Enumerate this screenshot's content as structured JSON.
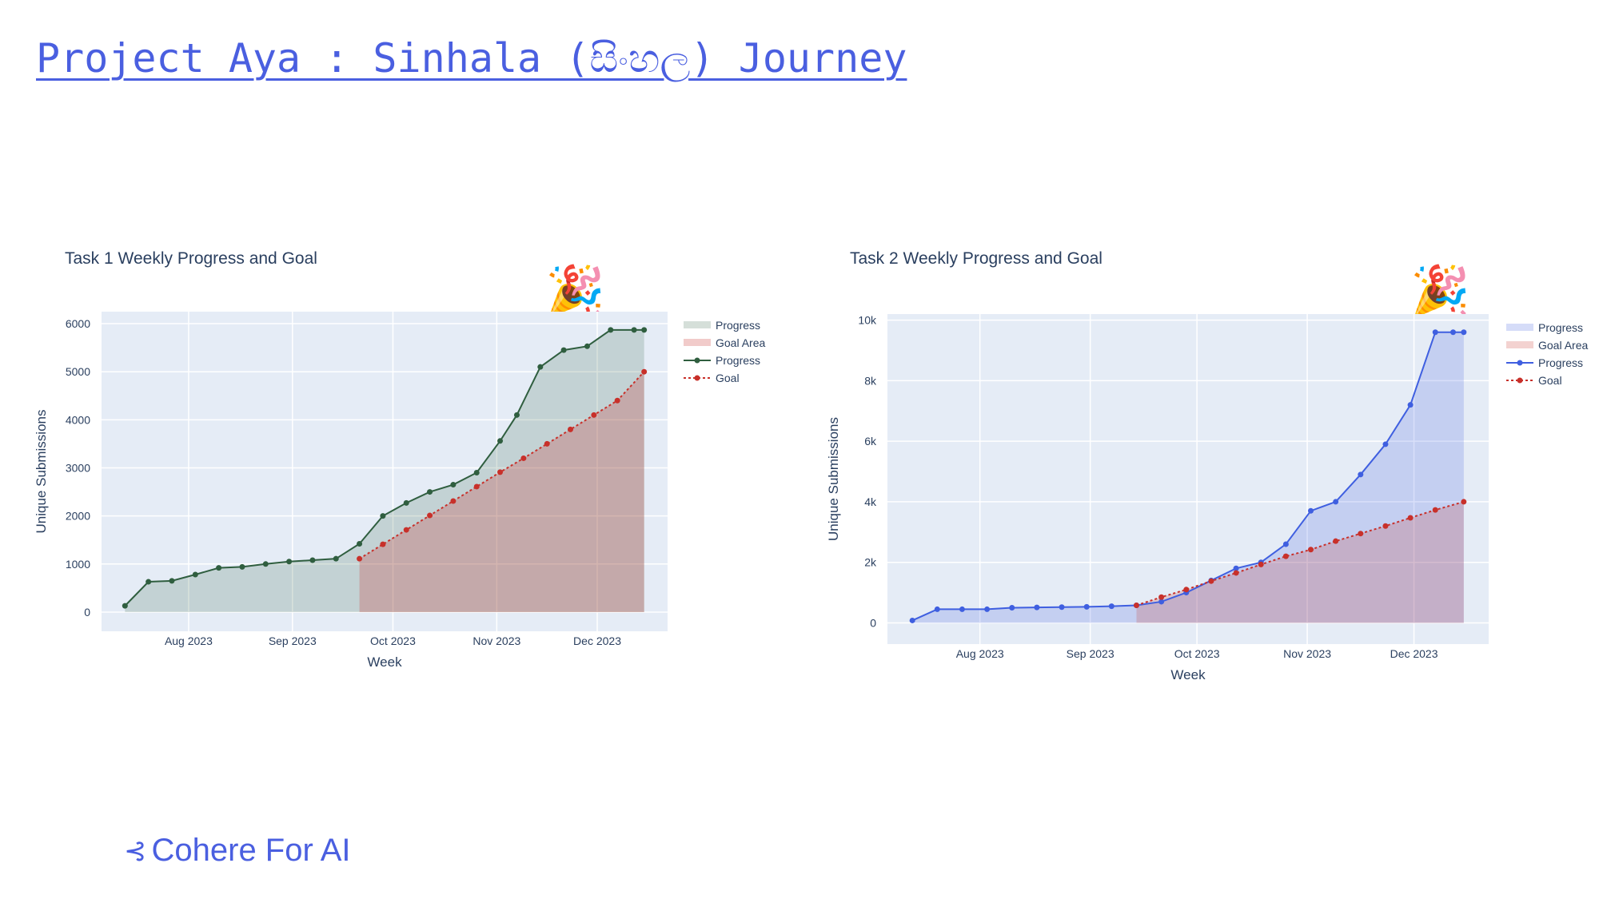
{
  "page": {
    "title": "Project Aya : Sinhala (සිංහල) Journey",
    "footer_logo": "Cohere For AI"
  },
  "icons": {
    "celebrate": "party-popper-icon",
    "logo": "cohere-logo-icon"
  },
  "colors": {
    "accent": "#4a5fe0",
    "plot_bg": "#e5ecf6",
    "task1_progress": "#2f5e3f",
    "task2_progress": "#3f5fe0",
    "goal": "#c8302a"
  },
  "chart_data": [
    {
      "type": "line",
      "title": "Task 1 Weekly Progress and Goal",
      "xlabel": "Week",
      "ylabel": "Unique Submissions",
      "x_tick_labels": [
        "Aug 2023",
        "Sep 2023",
        "Oct 2023",
        "Nov 2023",
        "Dec 2023"
      ],
      "y_tick_labels": [
        "0",
        "1000",
        "2000",
        "3000",
        "4000",
        "5000",
        "6000"
      ],
      "ylim": [
        -400,
        6250
      ],
      "grid": true,
      "legend_placement": "top-right outside",
      "legend": [
        "Progress",
        "Goal Area",
        "Progress",
        "Goal"
      ],
      "series": [
        {
          "name": "Progress",
          "x": [
            "2023-07-13",
            "2023-07-20",
            "2023-07-27",
            "2023-08-03",
            "2023-08-10",
            "2023-08-17",
            "2023-08-24",
            "2023-08-31",
            "2023-09-07",
            "2023-09-14",
            "2023-09-21",
            "2023-09-28",
            "2023-10-05",
            "2023-10-12",
            "2023-10-19",
            "2023-10-26",
            "2023-11-02",
            "2023-11-07",
            "2023-11-14",
            "2023-11-21",
            "2023-11-28",
            "2023-12-05",
            "2023-12-12",
            "2023-12-15"
          ],
          "values": [
            130,
            630,
            650,
            780,
            920,
            940,
            1000,
            1050,
            1080,
            1110,
            1420,
            2000,
            2270,
            2500,
            2650,
            2900,
            3560,
            4100,
            5100,
            5450,
            5530,
            5870,
            5870,
            5870
          ]
        },
        {
          "name": "Goal",
          "x": [
            "2023-09-21",
            "2023-09-28",
            "2023-10-05",
            "2023-10-12",
            "2023-10-19",
            "2023-10-26",
            "2023-11-02",
            "2023-11-09",
            "2023-11-16",
            "2023-11-23",
            "2023-11-30",
            "2023-12-07",
            "2023-12-15"
          ],
          "values": [
            1110,
            1410,
            1710,
            2010,
            2310,
            2610,
            2910,
            3200,
            3500,
            3800,
            4100,
            4400,
            5000
          ]
        }
      ]
    },
    {
      "type": "line",
      "title": "Task 2 Weekly Progress and Goal",
      "xlabel": "Week",
      "ylabel": "Unique Submissions",
      "x_tick_labels": [
        "Aug 2023",
        "Sep 2023",
        "Oct 2023",
        "Nov 2023",
        "Dec 2023"
      ],
      "y_tick_labels": [
        "0",
        "2k",
        "4k",
        "6k",
        "8k",
        "10k"
      ],
      "ylim": [
        -700,
        10200
      ],
      "grid": true,
      "legend_placement": "top-right outside",
      "legend": [
        "Progress",
        "Goal Area",
        "Progress",
        "Goal"
      ],
      "series": [
        {
          "name": "Progress",
          "x": [
            "2023-07-13",
            "2023-07-20",
            "2023-07-27",
            "2023-08-03",
            "2023-08-10",
            "2023-08-17",
            "2023-08-24",
            "2023-08-31",
            "2023-09-07",
            "2023-09-14",
            "2023-09-21",
            "2023-09-28",
            "2023-10-05",
            "2023-10-12",
            "2023-10-19",
            "2023-10-26",
            "2023-11-02",
            "2023-11-09",
            "2023-11-16",
            "2023-11-23",
            "2023-11-30",
            "2023-12-07",
            "2023-12-12",
            "2023-12-15"
          ],
          "values": [
            80,
            450,
            450,
            450,
            500,
            510,
            520,
            530,
            550,
            580,
            700,
            1000,
            1400,
            1800,
            2000,
            2600,
            3700,
            4000,
            4900,
            5900,
            7200,
            9600,
            9600,
            9600
          ]
        },
        {
          "name": "Goal",
          "x": [
            "2023-09-14",
            "2023-09-21",
            "2023-09-28",
            "2023-10-05",
            "2023-10-12",
            "2023-10-19",
            "2023-10-26",
            "2023-11-02",
            "2023-11-09",
            "2023-11-16",
            "2023-11-23",
            "2023-11-30",
            "2023-12-07",
            "2023-12-15"
          ],
          "values": [
            580,
            850,
            1100,
            1380,
            1650,
            1930,
            2200,
            2420,
            2700,
            2950,
            3200,
            3470,
            3730,
            4000
          ]
        }
      ]
    }
  ]
}
